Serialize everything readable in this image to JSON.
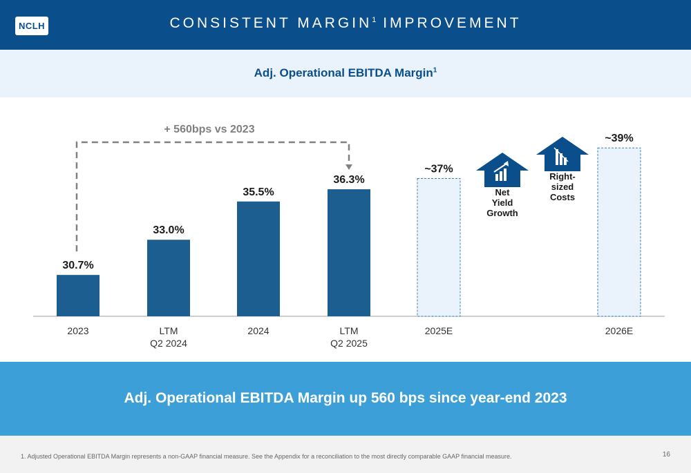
{
  "header": {
    "logo_text": "NCLH",
    "title": "CONSISTENT MARGIN",
    "title_sup": "1",
    "title_rest": " IMPROVEMENT"
  },
  "subheader": {
    "title": "Adj. Operational EBITDA Margin",
    "title_sup": "1"
  },
  "chart_data": {
    "type": "bar",
    "categories": [
      "2023",
      "LTM\nQ2 2024",
      "2024",
      "LTM\nQ2 2025",
      "2025E",
      "2026E"
    ],
    "values": [
      30.7,
      33.0,
      35.5,
      36.3,
      37,
      39
    ],
    "labels": [
      "30.7%",
      "33.0%",
      "35.5%",
      "36.3%",
      "~37%",
      "~39%"
    ],
    "estimate": [
      false,
      false,
      false,
      false,
      true,
      true
    ],
    "annotation": "+ 560bps vs 2023",
    "annotation_from": "2023",
    "annotation_to": "LTM\nQ2 2025",
    "ylim": [
      28,
      40.5
    ],
    "colors": {
      "actual": "#1b5e8f",
      "estimate_fill": "#eaf3fb",
      "estimate_stroke": "#3a7fb8",
      "annotation": "#808080"
    }
  },
  "drivers": [
    {
      "label": "Net\nYield\nGrowth",
      "icon": "growth-chart-icon"
    },
    {
      "label": "Right-\nsized\nCosts",
      "icon": "declining-chart-icon"
    }
  ],
  "banner": {
    "text": "Adj. Operational EBITDA Margin up 560 bps since year-end 2023"
  },
  "footer": {
    "footnote": "1.   Adjusted Operational EBITDA Margin represents a non-GAAP financial measure. See the Appendix for a reconciliation to the most directly comparable GAAP financial measure.",
    "page": "16"
  }
}
